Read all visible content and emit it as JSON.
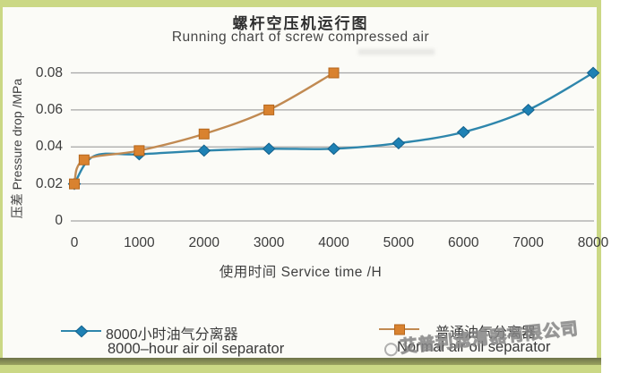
{
  "page": {
    "frame_color": "#cbd885",
    "panel_color": "#fbfbf7",
    "olive_bar_color": "#6e734a",
    "text_color": "#3c3c3c"
  },
  "title": {
    "zh": "螺杆空压机运行图",
    "en": "Running chart of screw compressed air"
  },
  "chart_data": {
    "type": "line",
    "title": "螺杆空压机运行图 Running chart of screw compressed air",
    "xlabel": "使用时间 Service time /H",
    "ylabel": "压差 Pressure drop /MPa",
    "xlim": [
      0,
      8000
    ],
    "ylim": [
      0,
      0.08
    ],
    "x_ticks": [
      0,
      1000,
      2000,
      3000,
      4000,
      5000,
      6000,
      7000,
      8000
    ],
    "y_ticks": [
      0,
      0.02,
      0.04,
      0.06,
      0.08
    ],
    "grid": true,
    "grid_color": "#a6a6a6",
    "legend_position": "bottom",
    "series": [
      {
        "name_zh": "8000小时油气分离器",
        "name_en": "8000–hour air oil separator",
        "marker": "diamond",
        "line_color": "#2e86ac",
        "marker_color": "#1e81b4",
        "marker_edge": "#14618c",
        "points": [
          {
            "x": 0,
            "y": 0.02,
            "marker": true
          },
          {
            "x": 300,
            "y": 0.035,
            "marker": false
          },
          {
            "x": 1000,
            "y": 0.036,
            "marker": true
          },
          {
            "x": 2000,
            "y": 0.038,
            "marker": true
          },
          {
            "x": 3000,
            "y": 0.039,
            "marker": true
          },
          {
            "x": 4000,
            "y": 0.039,
            "marker": true
          },
          {
            "x": 5000,
            "y": 0.042,
            "marker": true
          },
          {
            "x": 6000,
            "y": 0.048,
            "marker": true
          },
          {
            "x": 7000,
            "y": 0.06,
            "marker": true
          },
          {
            "x": 8000,
            "y": 0.08,
            "marker": true
          }
        ]
      },
      {
        "name_zh": "普通油气分离器",
        "name_en": "Normal air oil separator",
        "marker": "square",
        "line_color": "#c18a52",
        "marker_color": "#d9822f",
        "marker_edge": "#b4661c",
        "points": [
          {
            "x": 0,
            "y": 0.02,
            "marker": true
          },
          {
            "x": 150,
            "y": 0.033,
            "marker": true
          },
          {
            "x": 1000,
            "y": 0.038,
            "marker": true
          },
          {
            "x": 2000,
            "y": 0.047,
            "marker": true
          },
          {
            "x": 3000,
            "y": 0.06,
            "marker": true
          },
          {
            "x": 4000,
            "y": 0.08,
            "marker": true
          }
        ]
      }
    ]
  },
  "watermark": {
    "text": "艾普利滤清器有限公司"
  }
}
